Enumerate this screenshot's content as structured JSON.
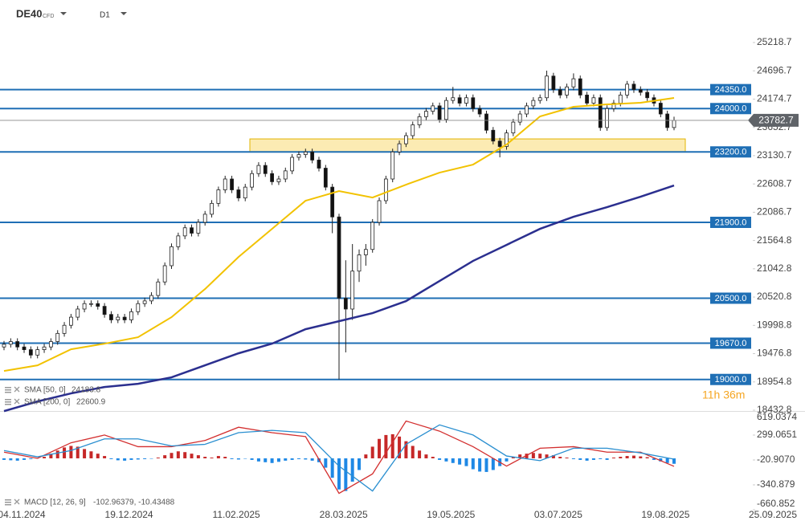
{
  "header": {
    "symbol": "DE40",
    "kind": "CFD",
    "timeframe": "D1"
  },
  "timer": "11h 36m",
  "chart_data": [
    {
      "type": "candlestick",
      "ylim": [
        18418,
        26004
      ],
      "yticks": [
        25218.7,
        24696.7,
        24174.7,
        23652.7,
        23130.7,
        22608.7,
        22086.7,
        21564.8,
        21042.8,
        20520.8,
        19998.8,
        19476.8,
        18954.8,
        18432.8
      ],
      "up_color": "#ffffff",
      "down_color": "#111111",
      "ohlc": [
        [
          19600,
          19710,
          19540,
          19650
        ],
        [
          19650,
          19760,
          19590,
          19700
        ],
        [
          19700,
          19760,
          19540,
          19600
        ],
        [
          19600,
          19660,
          19490,
          19550
        ],
        [
          19550,
          19610,
          19390,
          19450
        ],
        [
          19450,
          19610,
          19390,
          19550
        ],
        [
          19550,
          19660,
          19490,
          19600
        ],
        [
          19600,
          19760,
          19540,
          19700
        ],
        [
          19700,
          19910,
          19640,
          19850
        ],
        [
          19850,
          20060,
          19790,
          20000
        ],
        [
          20000,
          20210,
          19940,
          20150
        ],
        [
          20150,
          20360,
          20090,
          20300
        ],
        [
          20300,
          20460,
          20240,
          20400
        ],
        [
          20400,
          20460,
          20340,
          20400
        ],
        [
          20400,
          20460,
          20290,
          20350
        ],
        [
          20350,
          20410,
          20140,
          20200
        ],
        [
          20200,
          20260,
          20040,
          20100
        ],
        [
          20100,
          20210,
          20040,
          20150
        ],
        [
          20150,
          20210,
          20040,
          20100
        ],
        [
          20100,
          20310,
          20040,
          20250
        ],
        [
          20250,
          20460,
          20190,
          20400
        ],
        [
          20400,
          20510,
          20340,
          20450
        ],
        [
          20450,
          20610,
          20390,
          20550
        ],
        [
          20550,
          20860,
          20490,
          20800
        ],
        [
          20800,
          21160,
          20740,
          21100
        ],
        [
          21100,
          21510,
          21040,
          21450
        ],
        [
          21450,
          21710,
          21390,
          21650
        ],
        [
          21650,
          21860,
          21590,
          21800
        ],
        [
          21800,
          21860,
          21640,
          21700
        ],
        [
          21700,
          21960,
          21640,
          21900
        ],
        [
          21900,
          22110,
          21840,
          22050
        ],
        [
          22050,
          22310,
          21990,
          22250
        ],
        [
          22250,
          22560,
          22190,
          22500
        ],
        [
          22500,
          22760,
          22440,
          22700
        ],
        [
          22700,
          22760,
          22440,
          22500
        ],
        [
          22500,
          22560,
          22290,
          22350
        ],
        [
          22350,
          22610,
          22290,
          22550
        ],
        [
          22550,
          22860,
          22490,
          22800
        ],
        [
          22800,
          23010,
          22740,
          22950
        ],
        [
          22950,
          23010,
          22740,
          22800
        ],
        [
          22800,
          22860,
          22590,
          22650
        ],
        [
          22650,
          22760,
          22590,
          22700
        ],
        [
          22700,
          22910,
          22640,
          22850
        ],
        [
          22850,
          23160,
          22790,
          23100
        ],
        [
          23100,
          23210,
          23040,
          23150
        ],
        [
          23150,
          23260,
          23090,
          23200
        ],
        [
          23200,
          23260,
          22990,
          23050
        ],
        [
          23050,
          23110,
          22840,
          22900
        ],
        [
          22900,
          22960,
          22490,
          22550
        ],
        [
          22550,
          22610,
          21700,
          22000
        ],
        [
          22000,
          22060,
          19000,
          20500
        ],
        [
          20500,
          21200,
          19500,
          20300
        ],
        [
          20300,
          21500,
          20100,
          21000
        ],
        [
          21000,
          21400,
          20800,
          21300
        ],
        [
          21300,
          21500,
          21100,
          21400
        ],
        [
          21400,
          21960,
          21340,
          21900
        ],
        [
          21900,
          22360,
          21840,
          22300
        ],
        [
          22300,
          22760,
          22240,
          22700
        ],
        [
          22700,
          23260,
          22640,
          23200
        ],
        [
          23200,
          23410,
          23140,
          23350
        ],
        [
          23350,
          23560,
          23290,
          23500
        ],
        [
          23500,
          23760,
          23440,
          23700
        ],
        [
          23700,
          23910,
          23640,
          23850
        ],
        [
          23850,
          24010,
          23790,
          23950
        ],
        [
          23950,
          24110,
          23890,
          24050
        ],
        [
          24050,
          24110,
          23740,
          23800
        ],
        [
          23800,
          24210,
          23740,
          24150
        ],
        [
          24150,
          24400,
          24090,
          24200
        ],
        [
          24200,
          24260,
          24040,
          24100
        ],
        [
          24100,
          24260,
          24040,
          24200
        ],
        [
          24200,
          24260,
          23940,
          24000
        ],
        [
          24000,
          24060,
          23840,
          23900
        ],
        [
          23900,
          23960,
          23540,
          23600
        ],
        [
          23600,
          23660,
          23340,
          23400
        ],
        [
          23400,
          23460,
          23100,
          23300
        ],
        [
          23300,
          23610,
          23240,
          23550
        ],
        [
          23550,
          23810,
          23490,
          23750
        ],
        [
          23750,
          23960,
          23690,
          23900
        ],
        [
          23900,
          24110,
          23840,
          24050
        ],
        [
          24050,
          24210,
          23990,
          24150
        ],
        [
          24150,
          24260,
          24090,
          24200
        ],
        [
          24200,
          24700,
          24140,
          24600
        ],
        [
          24600,
          24660,
          24290,
          24350
        ],
        [
          24350,
          24410,
          24190,
          24250
        ],
        [
          24250,
          24460,
          24190,
          24400
        ],
        [
          24400,
          24650,
          24340,
          24550
        ],
        [
          24550,
          24610,
          24190,
          24250
        ],
        [
          24250,
          24310,
          24040,
          24100
        ],
        [
          24100,
          24260,
          24040,
          24200
        ],
        [
          24200,
          24260,
          23590,
          23650
        ],
        [
          23650,
          24060,
          23590,
          24000
        ],
        [
          24000,
          24160,
          23940,
          24100
        ],
        [
          24100,
          24310,
          24040,
          24250
        ],
        [
          24250,
          24510,
          24190,
          24450
        ],
        [
          24450,
          24510,
          24290,
          24350
        ],
        [
          24350,
          24410,
          24240,
          24300
        ],
        [
          24300,
          24360,
          24140,
          24200
        ],
        [
          24200,
          24260,
          24040,
          24100
        ],
        [
          24100,
          24160,
          23840,
          23900
        ],
        [
          23900,
          23960,
          23590,
          23650
        ],
        [
          23650,
          23850,
          23600,
          23782.7
        ]
      ],
      "series": [
        {
          "name": "SMA [50, 0]",
          "last": "24183.8",
          "color": "#f2c200",
          "values": [
            19157,
            19260,
            19557,
            19660,
            19780,
            20150,
            20669,
            21261,
            21780,
            22299,
            22477,
            22358,
            22596,
            22818,
            22966,
            23336,
            23855,
            24033,
            24077,
            24107,
            24196
          ]
        },
        {
          "name": "SMA [200, 0]",
          "last": "22600.9",
          "color": "#2b2f8f",
          "values": [
            18416,
            18594,
            18743,
            18861,
            18920,
            19039,
            19261,
            19483,
            19661,
            19928,
            20076,
            20224,
            20447,
            20817,
            21188,
            21484,
            21780,
            22003,
            22181,
            22373,
            22581
          ]
        }
      ],
      "levels": [
        {
          "value": 24350,
          "label": "24350.0"
        },
        {
          "value": 24000,
          "label": "24000.0"
        },
        {
          "value": 23200,
          "label": "23200.0"
        },
        {
          "value": 21900,
          "label": "21900.0"
        },
        {
          "value": 20500,
          "label": "20500.0"
        },
        {
          "value": 19670,
          "label": "19670.0"
        },
        {
          "value": 19000,
          "label": "19000.0"
        }
      ],
      "level_color": "#1f6fb5",
      "zone": [
        23200,
        23440
      ]
    },
    {
      "type": "macd",
      "title": "MACD [12, 26, 9]",
      "last": "-102.96379, -10.43488",
      "ylim": [
        -660.852,
        619.0374
      ],
      "yticks": [
        619.0374,
        299.0651,
        {
          "value": -20.907,
          "label": "-20.9070"
        },
        -340.879,
        -660.852
      ],
      "pos_color": "#c62828",
      "neg_color": "#1e88e5",
      "histogram": [
        -20,
        -25,
        -30,
        -20,
        -10,
        5,
        20,
        60,
        100,
        140,
        160,
        150,
        120,
        90,
        60,
        30,
        -10,
        -25,
        -30,
        -20,
        -15,
        -10,
        -5,
        10,
        40,
        70,
        90,
        80,
        60,
        40,
        20,
        10,
        30,
        20,
        -10,
        -15,
        -5,
        -20,
        -40,
        -50,
        -60,
        -45,
        -30,
        -20,
        -10,
        -15,
        -30,
        -50,
        -120,
        -250,
        -400,
        -420,
        -300,
        -150,
        50,
        150,
        250,
        300,
        310,
        280,
        220,
        160,
        100,
        50,
        20,
        -20,
        -40,
        -60,
        -80,
        -100,
        -140,
        -170,
        -175,
        -150,
        -100,
        -40,
        20,
        50,
        60,
        70,
        60,
        50,
        40,
        20,
        10,
        -10,
        -20,
        -30,
        -20,
        -10,
        -20,
        10,
        20,
        30,
        35,
        25,
        15,
        -20,
        -40,
        -60,
        -70
      ],
      "series": [
        {
          "name": "MACD",
          "color": "#d32f2f",
          "values": [
            80,
            0,
            200,
            300,
            150,
            150,
            230,
            400,
            330,
            280,
            -450,
            -200,
            480,
            350,
            150,
            -100,
            130,
            150,
            80,
            80,
            -102.96
          ]
        },
        {
          "name": "Signal",
          "color": "#2a8fd0",
          "values": [
            100,
            20,
            100,
            250,
            250,
            160,
            180,
            330,
            360,
            330,
            -100,
            -420,
            180,
            430,
            300,
            30,
            -30,
            130,
            130,
            70,
            -10.43
          ]
        }
      ],
      "xticklabels": [
        "04.11.2024",
        "19.12.2024",
        "11.02.2025",
        "28.03.2025",
        "19.05.2025",
        "03.07.2025",
        "19.08.2025",
        "25.09.2025"
      ]
    }
  ]
}
